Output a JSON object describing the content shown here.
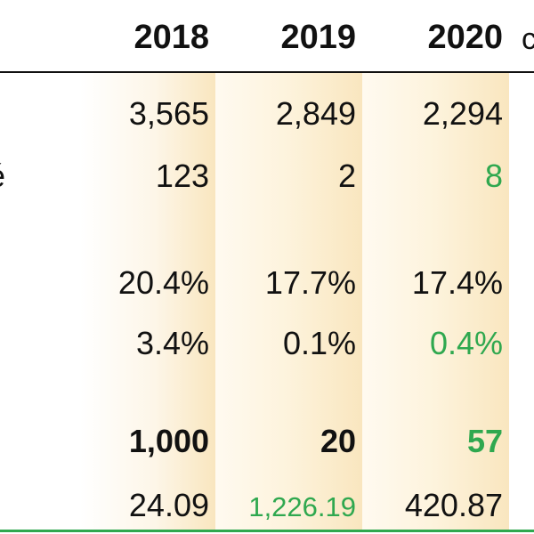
{
  "colors": {
    "highlight_green": "#2fa84f",
    "text_dark": "#111111",
    "column_shade": "#f9e6bf"
  },
  "header": {
    "years": [
      "2018",
      "2019",
      "2020"
    ],
    "cutoff_fragment": "c"
  },
  "row_stub_fragment": "é",
  "rows": [
    {
      "values": [
        "3,565",
        "2,849",
        "2,294"
      ],
      "bold": false,
      "green": [
        false,
        false,
        false
      ]
    },
    {
      "values": [
        "123",
        "2",
        "8"
      ],
      "bold": false,
      "green": [
        false,
        false,
        true
      ]
    },
    {
      "values": [
        "20.4%",
        "17.7%",
        "17.4%"
      ],
      "bold": false,
      "green": [
        false,
        false,
        false
      ]
    },
    {
      "values": [
        "3.4%",
        "0.1%",
        "0.4%"
      ],
      "bold": false,
      "green": [
        false,
        false,
        true
      ]
    },
    {
      "values": [
        "1,000",
        "20",
        "57"
      ],
      "bold": true,
      "green": [
        false,
        false,
        true
      ]
    },
    {
      "values": [
        "24.09",
        "1,226.19",
        "420.87"
      ],
      "bold": false,
      "green": [
        false,
        true,
        false
      ]
    }
  ]
}
